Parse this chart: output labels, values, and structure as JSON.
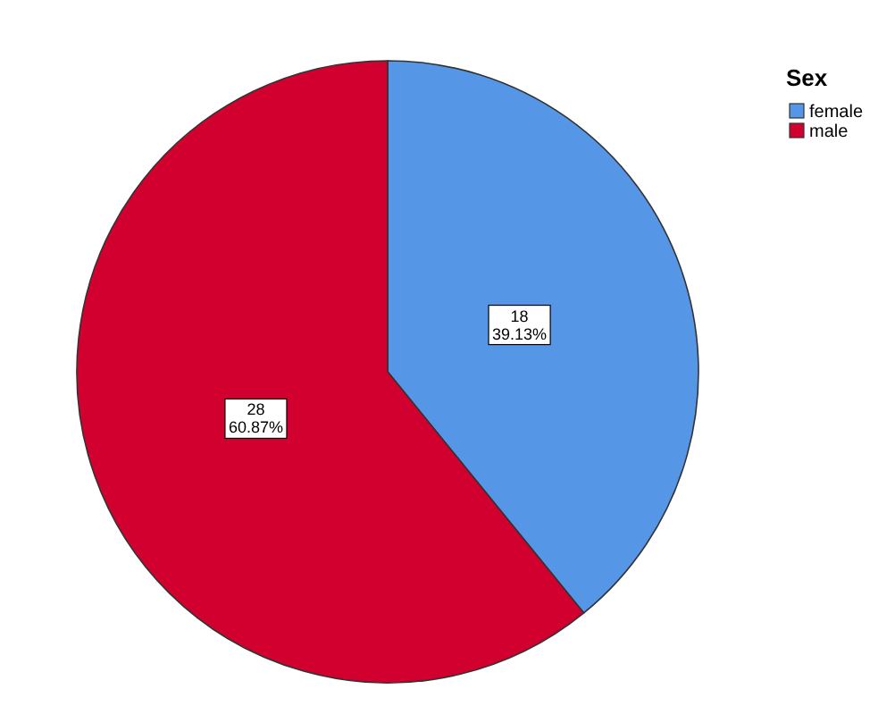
{
  "chart_data": {
    "type": "pie",
    "legend_title": "Sex",
    "legend": "top right",
    "categories": [
      "female",
      "male"
    ],
    "values": [
      18,
      28
    ],
    "colors": [
      "#5596e6",
      "#d2002e"
    ],
    "value_labels": [
      "18\n39.13%",
      "28\n60.87%"
    ]
  }
}
